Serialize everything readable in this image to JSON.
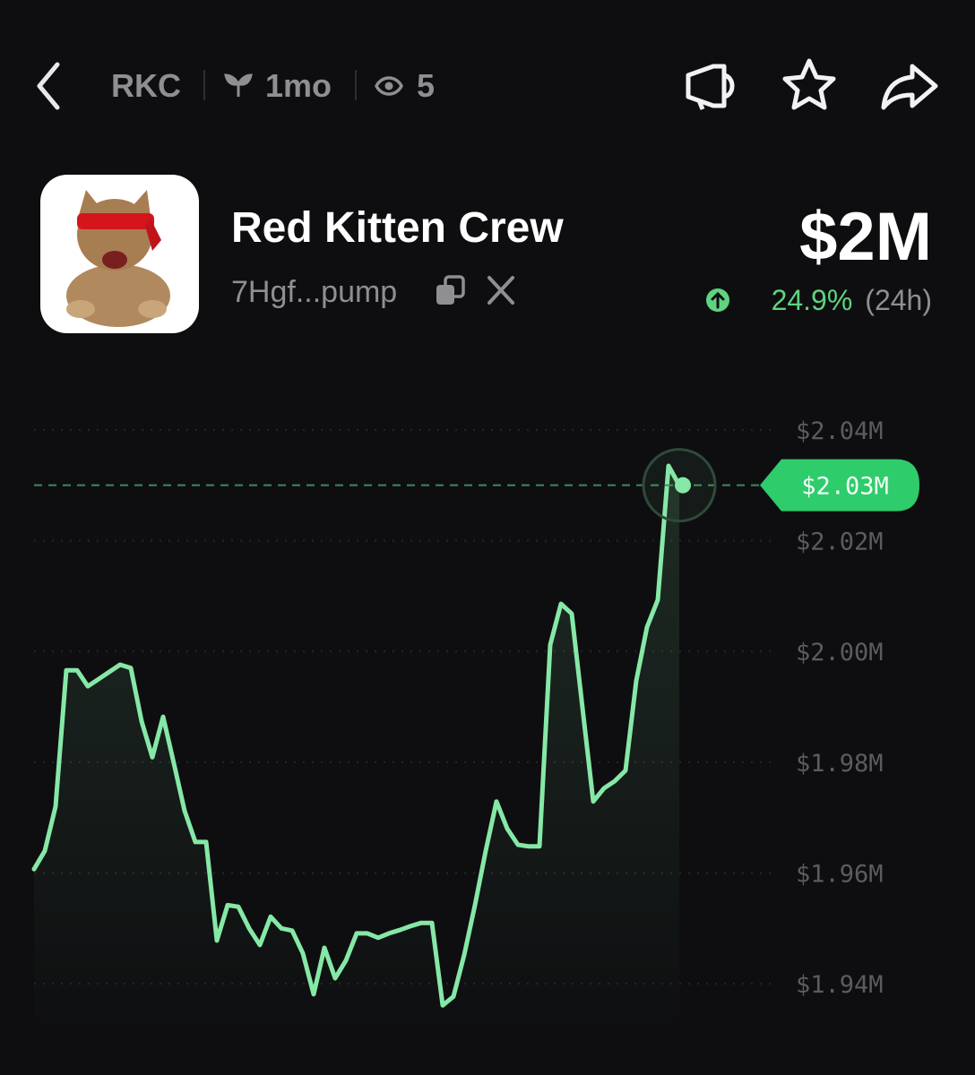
{
  "header": {
    "ticker": "RKC",
    "age": "1mo",
    "viewers": "5"
  },
  "token": {
    "name": "Red Kitten Crew",
    "address": "7Hgf...pump",
    "market_cap": "$2M",
    "change": "24.9%",
    "change_period": "(24h)"
  },
  "chart_data": {
    "type": "line",
    "color": "#86e8a6",
    "values": [
      1960700,
      1964000,
      1972000,
      1996600,
      1996600,
      1993700,
      1995000,
      1996300,
      1997600,
      1997000,
      1987400,
      1980900,
      1988200,
      1979800,
      1971200,
      1965600,
      1965600,
      1947800,
      1954200,
      1953900,
      1950000,
      1947000,
      1952100,
      1950000,
      1949600,
      1945500,
      1938100,
      1946500,
      1941000,
      1944200,
      1949100,
      1949100,
      1948300,
      1949100,
      1949700,
      1950400,
      1951000,
      1951000,
      1936100,
      1937700,
      1945200,
      1954200,
      1964000,
      1972900,
      1968000,
      1965100,
      1964800,
      1964800,
      2001200,
      2008600,
      2006800,
      1989800,
      1972900,
      1975300,
      1976600,
      1978500,
      1994700,
      2004400,
      2009300,
      2033500,
      2030000
    ],
    "ylim": [
      1930000,
      2050000
    ],
    "yticks": [
      {
        "value": 2040000,
        "label": "$2.04M"
      },
      {
        "value": 2020000,
        "label": "$2.02M"
      },
      {
        "value": 2000000,
        "label": "$2.00M"
      },
      {
        "value": 1980000,
        "label": "$1.98M"
      },
      {
        "value": 1960000,
        "label": "$1.96M"
      },
      {
        "value": 1940000,
        "label": "$1.94M"
      }
    ],
    "current": {
      "value": 2030000,
      "label": "$2.03M"
    },
    "grid": true
  }
}
